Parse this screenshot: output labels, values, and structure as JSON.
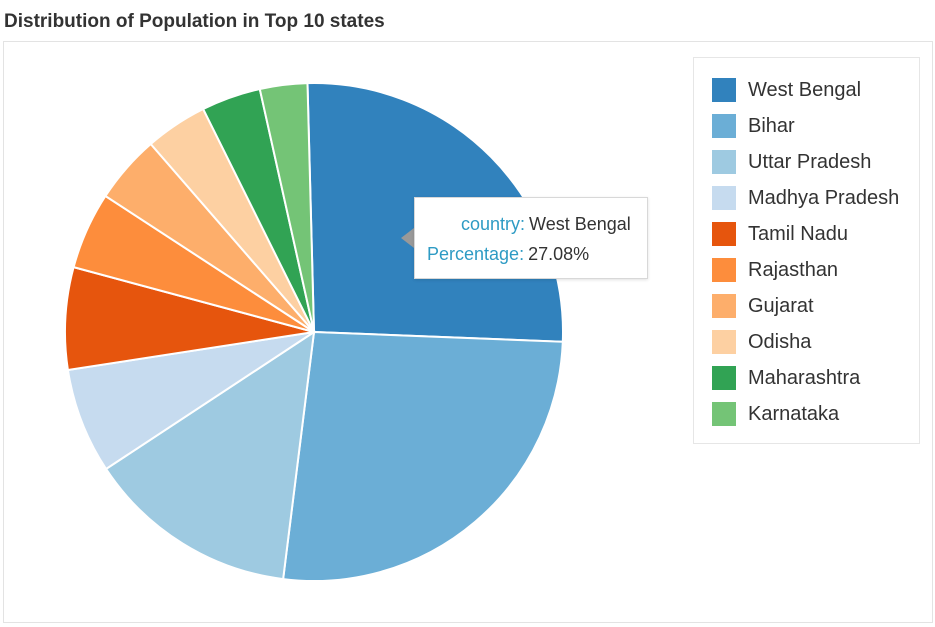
{
  "title": "Distribution of Population in Top 10 states",
  "chart_data": {
    "type": "pie",
    "title": "Distribution of Population in Top 10 states",
    "categories": [
      "West Bengal",
      "Bihar",
      "Uttar Pradesh",
      "Madhya Pradesh",
      "Tamil Nadu",
      "Rajasthan",
      "Gujarat",
      "Odisha",
      "Maharashtra",
      "Karnataka"
    ],
    "values": [
      27.08,
      27.4,
      14.3,
      7.1,
      6.9,
      5.2,
      4.6,
      4.2,
      4.0,
      3.2
    ],
    "colors": [
      "#3182bd",
      "#6baed6",
      "#9ecae1",
      "#c6dbef",
      "#e6550d",
      "#fd8d3c",
      "#fdae6b",
      "#fdd0a2",
      "#31a354",
      "#74c476"
    ],
    "legend_position": "right"
  },
  "tooltip": {
    "key1": "country:",
    "val1": "West Bengal",
    "key2": "Percentage:",
    "val2": "27.08%"
  }
}
